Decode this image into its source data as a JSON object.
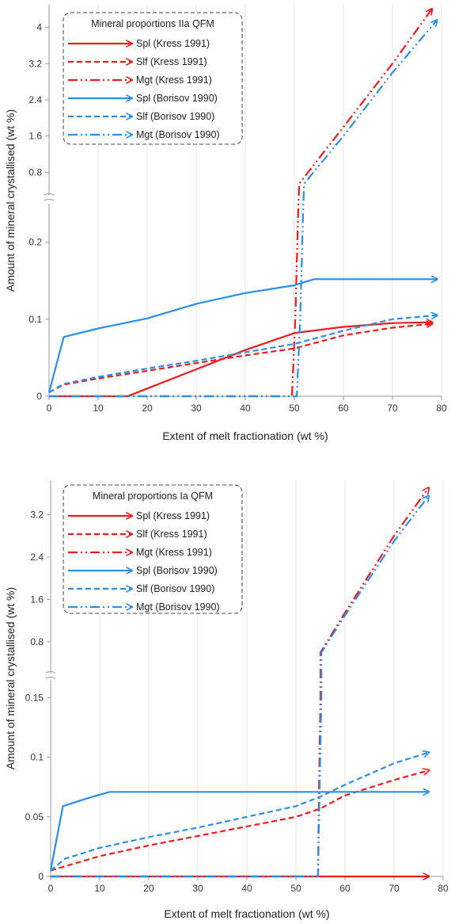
{
  "colors": {
    "kress": "#ee1c1c",
    "borisov": "#2b8ee8"
  },
  "chart_data": [
    {
      "type": "line",
      "xlabel": "Extent of melt fractionation (wt %)",
      "ylabel": "Amount of mineral crystallised (wt %)",
      "legend_title": "Mineral proportions IIa QFM",
      "legend_position": "top-left",
      "grid": "vertical only",
      "xlim": [
        0,
        80
      ],
      "x_ticks": [
        "0",
        "10",
        "20",
        "30",
        "40",
        "50",
        "60",
        "70",
        "80"
      ],
      "broken_y_axis": {
        "lower_ylim": [
          0,
          0.25
        ],
        "lower_ticks": [
          {
            "v": 0,
            "label": "0"
          },
          {
            "v": 0.1,
            "label": "0.1"
          },
          {
            "v": 0.2,
            "label": "0.2"
          }
        ],
        "upper_ylim": [
          0.3,
          4.5
        ],
        "upper_ticks": [
          {
            "v": 0.8,
            "label": "0.8"
          },
          {
            "v": 1.6,
            "label": "1.6"
          },
          {
            "v": 2.4,
            "label": "2.4"
          },
          {
            "v": 3.2,
            "label": "3.2"
          },
          {
            "v": 4,
            "label": "4"
          }
        ]
      },
      "series": [
        {
          "name": "Spl (Kress 1991)",
          "color": "kress",
          "dash": "solid",
          "points": [
            [
              0,
              0
            ],
            [
              16,
              0
            ],
            [
              20,
              0.01
            ],
            [
              30,
              0.035
            ],
            [
              40,
              0.06
            ],
            [
              50,
              0.082
            ],
            [
              60,
              0.09
            ],
            [
              70,
              0.095
            ],
            [
              78,
              0.096
            ]
          ]
        },
        {
          "name": "Slf (Kress 1991)",
          "color": "kress",
          "dash": "dash",
          "points": [
            [
              0,
              0.005
            ],
            [
              3,
              0.015
            ],
            [
              10,
              0.023
            ],
            [
              20,
              0.033
            ],
            [
              30,
              0.043
            ],
            [
              40,
              0.053
            ],
            [
              50,
              0.062
            ],
            [
              60,
              0.079
            ],
            [
              70,
              0.089
            ],
            [
              78,
              0.094
            ]
          ]
        },
        {
          "name": "Mgt (Kress 1991)",
          "color": "kress",
          "dash": "dashdotdot",
          "points": [
            [
              0,
              0
            ],
            [
              49.5,
              0
            ],
            [
              50.2,
              0.1
            ],
            [
              50.8,
              0.245
            ],
            [
              51,
              0.55
            ],
            [
              60,
              1.8
            ],
            [
              70,
              3.2
            ],
            [
              78,
              4.4
            ]
          ]
        },
        {
          "name": "Spl (Borisov 1990)",
          "color": "borisov",
          "dash": "solid",
          "points": [
            [
              0,
              0.005
            ],
            [
              3,
              0.077
            ],
            [
              10,
              0.088
            ],
            [
              20,
              0.101
            ],
            [
              30,
              0.12
            ],
            [
              40,
              0.134
            ],
            [
              50,
              0.144
            ],
            [
              54,
              0.152
            ],
            [
              60,
              0.152
            ],
            [
              70,
              0.152
            ],
            [
              79,
              0.152
            ]
          ]
        },
        {
          "name": "Slf (Borisov 1990)",
          "color": "borisov",
          "dash": "dash",
          "points": [
            [
              0,
              0.005
            ],
            [
              3,
              0.016
            ],
            [
              10,
              0.025
            ],
            [
              20,
              0.036
            ],
            [
              30,
              0.046
            ],
            [
              40,
              0.057
            ],
            [
              50,
              0.068
            ],
            [
              60,
              0.085
            ],
            [
              70,
              0.1
            ],
            [
              79,
              0.105
            ]
          ]
        },
        {
          "name": "Mgt (Borisov 1990)",
          "color": "borisov",
          "dash": "dashdotdot",
          "points": [
            [
              0,
              0
            ],
            [
              50.5,
              0
            ],
            [
              51.2,
              0.1
            ],
            [
              51.8,
              0.245
            ],
            [
              52,
              0.55
            ],
            [
              60,
              1.6
            ],
            [
              70,
              3.0
            ],
            [
              79,
              4.15
            ]
          ]
        }
      ]
    },
    {
      "type": "line",
      "xlabel": "Extent of melt fractionation (wt %)",
      "ylabel": "Amount of mineral crystallised (wt %)",
      "legend_title": "Mineral proportions Ia QFM",
      "legend_position": "top-left",
      "grid": "vertical only",
      "xlim": [
        0,
        80
      ],
      "x_ticks": [
        "0",
        "10",
        "20",
        "30",
        "40",
        "50",
        "60",
        "70",
        "80"
      ],
      "broken_y_axis": {
        "lower_ylim": [
          0,
          0.165
        ],
        "lower_ticks": [
          {
            "v": 0,
            "label": "0"
          },
          {
            "v": 0.05,
            "label": "0.05"
          },
          {
            "v": 0.1,
            "label": "0.1"
          },
          {
            "v": 0.15,
            "label": "0.15"
          }
        ],
        "upper_ylim": [
          0.2,
          3.85
        ],
        "upper_ticks": [
          {
            "v": 0.8,
            "label": "0.8"
          },
          {
            "v": 1.6,
            "label": "1.6"
          },
          {
            "v": 2.4,
            "label": "2.4"
          },
          {
            "v": 3.2,
            "label": "3.2"
          }
        ]
      },
      "series": [
        {
          "name": "Spl (Kress 1991)",
          "color": "kress",
          "dash": "solid",
          "points": [
            [
              0,
              0
            ],
            [
              20,
              0
            ],
            [
              40,
              0
            ],
            [
              60,
              0
            ],
            [
              77,
              0
            ]
          ]
        },
        {
          "name": "Slf (Kress 1991)",
          "color": "kress",
          "dash": "dash",
          "points": [
            [
              0,
              0.005
            ],
            [
              10,
              0.017
            ],
            [
              20,
              0.026
            ],
            [
              30,
              0.034
            ],
            [
              40,
              0.042
            ],
            [
              50,
              0.05
            ],
            [
              55,
              0.057
            ],
            [
              60,
              0.068
            ],
            [
              70,
              0.081
            ],
            [
              77,
              0.089
            ]
          ]
        },
        {
          "name": "Mgt (Kress 1991)",
          "color": "kress",
          "dash": "dashdotdot",
          "points": [
            [
              0,
              0
            ],
            [
              54.5,
              0
            ],
            [
              54.7,
              0.07
            ],
            [
              55,
              0.15
            ],
            [
              55,
              0.6
            ],
            [
              60,
              1.35
            ],
            [
              70,
              2.8
            ],
            [
              77,
              3.7
            ]
          ]
        },
        {
          "name": "Spl (Borisov 1990)",
          "color": "borisov",
          "dash": "solid",
          "points": [
            [
              0,
              0.005
            ],
            [
              2.5,
              0.059
            ],
            [
              7,
              0.065
            ],
            [
              12,
              0.071
            ],
            [
              20,
              0.071
            ],
            [
              40,
              0.071
            ],
            [
              60,
              0.071
            ],
            [
              77,
              0.071
            ]
          ]
        },
        {
          "name": "Slf (Borisov 1990)",
          "color": "borisov",
          "dash": "dash",
          "points": [
            [
              0,
              0.005
            ],
            [
              3,
              0.015
            ],
            [
              10,
              0.024
            ],
            [
              20,
              0.033
            ],
            [
              30,
              0.041
            ],
            [
              40,
              0.05
            ],
            [
              50,
              0.059
            ],
            [
              55,
              0.067
            ],
            [
              60,
              0.077
            ],
            [
              70,
              0.095
            ],
            [
              77,
              0.104
            ]
          ]
        },
        {
          "name": "Mgt (Borisov 1990)",
          "color": "borisov",
          "dash": "dashdotdot",
          "points": [
            [
              0,
              0
            ],
            [
              54.5,
              0
            ],
            [
              54.8,
              0.07
            ],
            [
              55.2,
              0.15
            ],
            [
              55.2,
              0.6
            ],
            [
              60,
              1.3
            ],
            [
              70,
              2.7
            ],
            [
              77,
              3.55
            ]
          ]
        }
      ]
    }
  ]
}
